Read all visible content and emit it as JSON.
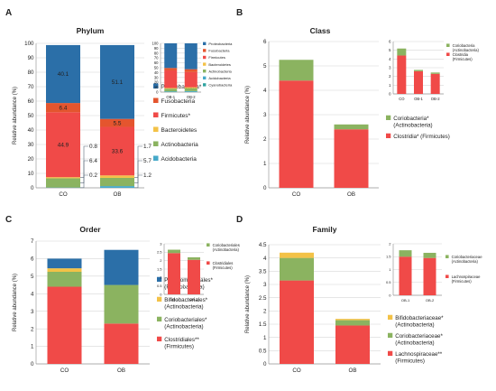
{
  "colors": {
    "proteobacteria": "#2b6fa8",
    "fusobacteria": "#e4552e",
    "firmicutes": "#f04a48",
    "bacteroidetes": "#f3c247",
    "actinobacteria": "#8bb360",
    "acidobacteria": "#46a9c9",
    "cyanobacteria": "#2ea3a0",
    "grid": "#d6d6d6",
    "axis": "#9a9a9a",
    "text": "#222222"
  },
  "chart_data": [
    {
      "id": "A-main",
      "panel_letter": "A",
      "type": "bar",
      "stacked": true,
      "title": "Phylum",
      "ylabel": "Relative abundance (%)",
      "xlabel": "",
      "categories": [
        "CO",
        "OB"
      ],
      "ylim": [
        0,
        100
      ],
      "yticks": [
        "0",
        "10",
        "20",
        "30",
        "40",
        "50",
        "60",
        "70",
        "80",
        "90",
        "100"
      ],
      "grid": true,
      "series": [
        {
          "key": "acidobacteria",
          "values": [
            0.2,
            1.2
          ]
        },
        {
          "key": "actinobacteria",
          "values": [
            6.4,
            5.7
          ]
        },
        {
          "key": "bacteroidetes",
          "values": [
            0.8,
            1.7
          ]
        },
        {
          "key": "firmicutes",
          "values": [
            44.9,
            33.6
          ]
        },
        {
          "key": "fusobacteria",
          "values": [
            6.4,
            5.5
          ]
        },
        {
          "key": "proteobacteria",
          "values": [
            40.1,
            51.1
          ]
        }
      ],
      "data_labels": [
        {
          "series": "proteobacteria",
          "cat": 0,
          "text": "40.1"
        },
        {
          "series": "proteobacteria",
          "cat": 1,
          "text": "51.1"
        },
        {
          "series": "fusobacteria",
          "cat": 0,
          "text": "6.4"
        },
        {
          "series": "fusobacteria",
          "cat": 1,
          "text": "5.5"
        },
        {
          "series": "firmicutes",
          "cat": 0,
          "text": "44.9"
        },
        {
          "series": "firmicutes",
          "cat": 1,
          "text": "33.6"
        }
      ],
      "side_labels": [
        {
          "cat": 0,
          "text": "0.8"
        },
        {
          "cat": 0,
          "text": "6.4"
        },
        {
          "cat": 0,
          "text": "0.2"
        },
        {
          "cat": 1,
          "text": "1.7"
        },
        {
          "cat": 1,
          "text": "5.7"
        },
        {
          "cat": 1,
          "text": "1.2"
        }
      ],
      "legend": [
        {
          "key": "proteobacteria",
          "text": "Proteobacteria*"
        },
        {
          "key": "fusobacteria",
          "text": "Fusobacteria"
        },
        {
          "key": "firmicutes",
          "text": "Firmicutes*"
        },
        {
          "key": "bacteroidetes",
          "text": "Bacteroidetes"
        },
        {
          "key": "actinobacteria",
          "text": "Actinobacteria"
        },
        {
          "key": "acidobacteria",
          "text": "Acidobacteria"
        }
      ],
      "legend_position": "right"
    },
    {
      "id": "A-inset",
      "type": "bar",
      "stacked": true,
      "categories": [
        "OB-1",
        "OB-2"
      ],
      "ylim": [
        0,
        100
      ],
      "yticks": [
        "0",
        "10",
        "20",
        "30",
        "40",
        "50",
        "60",
        "70",
        "80",
        "90",
        "100"
      ],
      "grid": true,
      "series": [
        {
          "key": "acidobacteria",
          "values": [
            1.0,
            1.5
          ]
        },
        {
          "key": "cyanobacteria",
          "values": [
            0.5,
            0.5
          ]
        },
        {
          "key": "actinobacteria",
          "values": [
            5.5,
            6.0
          ]
        },
        {
          "key": "bacteroidetes",
          "values": [
            1.5,
            2.0
          ]
        },
        {
          "key": "firmicutes",
          "values": [
            36,
            31
          ]
        },
        {
          "key": "fusobacteria",
          "values": [
            5,
            6
          ]
        },
        {
          "key": "proteobacteria",
          "values": [
            50.5,
            53
          ]
        }
      ],
      "legend": [
        {
          "key": "proteobacteria",
          "text": "Proteobacteria"
        },
        {
          "key": "fusobacteria",
          "text": "Fusobacteria"
        },
        {
          "key": "firmicutes",
          "text": "Firmicutes"
        },
        {
          "key": "bacteroidetes",
          "text": "Bacteroidetes"
        },
        {
          "key": "actinobacteria",
          "text": "Actinobacteria"
        },
        {
          "key": "acidobacteria",
          "text": "Acidobacteria"
        },
        {
          "key": "cyanobacteria",
          "text": "Cyanobacteria"
        }
      ],
      "legend_position": "right"
    },
    {
      "id": "B-main",
      "panel_letter": "B",
      "type": "bar",
      "stacked": true,
      "title": "Class",
      "ylabel": "Relative abundance (%)",
      "categories": [
        "CO",
        "OB"
      ],
      "ylim": [
        0,
        6
      ],
      "yticks": [
        "0",
        "1",
        "2",
        "3",
        "4",
        "5",
        "6"
      ],
      "grid": true,
      "series": [
        {
          "key": "firmicutes",
          "values": [
            4.4,
            2.4
          ]
        },
        {
          "key": "actinobacteria",
          "values": [
            0.85,
            0.2
          ]
        }
      ],
      "legend": [
        {
          "key": "actinobacteria",
          "text": "Coriobacteria*\n(Actinobacteria)"
        },
        {
          "key": "firmicutes",
          "text": "Clostridia* (Firmicutes)"
        }
      ],
      "legend_position": "right"
    },
    {
      "id": "B-inset",
      "type": "bar",
      "stacked": true,
      "categories": [
        "CO",
        "OB-1",
        "OB-2"
      ],
      "ylim": [
        0,
        6
      ],
      "yticks": [
        "0",
        "1",
        "2",
        "3",
        "4",
        "5",
        "6"
      ],
      "grid": true,
      "series": [
        {
          "key": "firmicutes",
          "values": [
            4.4,
            2.6,
            2.3
          ]
        },
        {
          "key": "actinobacteria",
          "values": [
            0.8,
            0.15,
            0.15
          ]
        }
      ],
      "legend": [
        {
          "key": "actinobacteria",
          "text": "Coriobacteria\n(Actinobacteria)"
        },
        {
          "key": "firmicutes",
          "text": "Clostridia\n(Firmicutes)"
        }
      ],
      "legend_position": "right"
    },
    {
      "id": "C-main",
      "panel_letter": "C",
      "type": "bar",
      "stacked": true,
      "title": "Order",
      "ylabel": "Relative abundance (%)",
      "categories": [
        "CO",
        "OB"
      ],
      "ylim": [
        0,
        7
      ],
      "yticks": [
        "0",
        "1",
        "2",
        "3",
        "4",
        "5",
        "6",
        "7"
      ],
      "grid": true,
      "series": [
        {
          "key": "firmicutes",
          "values": [
            4.4,
            2.3
          ]
        },
        {
          "key": "actinobacteria",
          "values": [
            0.85,
            2.2
          ]
        },
        {
          "key": "bacteroidetes",
          "values": [
            0.2,
            0.0
          ]
        },
        {
          "key": "proteobacteria",
          "values": [
            0.55,
            2.0
          ]
        }
      ],
      "legend": [
        {
          "key": "proteobacteria",
          "text": "Pseudomonadales*\n(Proteobacteria)"
        },
        {
          "key": "bacteroidetes",
          "text": "Bifidobacteriales*\n(Actinobacteria)"
        },
        {
          "key": "actinobacteria",
          "text": "Coriobacteriales*\n(Actinobacteria)"
        },
        {
          "key": "firmicutes",
          "text": "Clostridiales**\n(Firmicutes)"
        }
      ],
      "legend_position": "right"
    },
    {
      "id": "C-inset",
      "type": "bar",
      "stacked": true,
      "categories": [
        "OB-1",
        "OB-2"
      ],
      "ylim": [
        0,
        3
      ],
      "yticks": [
        "0",
        "0.5",
        "1",
        "1.5",
        "2",
        "2.5",
        "3"
      ],
      "grid": true,
      "series": [
        {
          "key": "firmicutes",
          "values": [
            2.45,
            2.05
          ]
        },
        {
          "key": "actinobacteria",
          "values": [
            0.2,
            0.15
          ]
        }
      ],
      "legend": [
        {
          "key": "actinobacteria",
          "text": "Coriobacteriales\n(Actinobacteria)"
        },
        {
          "key": "firmicutes",
          "text": "Clostridiales\n(Firmicutes)"
        }
      ],
      "legend_position": "right"
    },
    {
      "id": "D-main",
      "panel_letter": "D",
      "type": "bar",
      "stacked": true,
      "title": "Family",
      "ylabel": "Relative abundance (%)",
      "categories": [
        "CO",
        "OB"
      ],
      "ylim": [
        0,
        4.5
      ],
      "yticks": [
        "0",
        "0.5",
        "1",
        "1.5",
        "2",
        "2.5",
        "3",
        "3.5",
        "4",
        "4.5"
      ],
      "grid": true,
      "series": [
        {
          "key": "firmicutes",
          "values": [
            3.15,
            1.45
          ]
        },
        {
          "key": "actinobacteria",
          "values": [
            0.85,
            0.2
          ]
        },
        {
          "key": "bacteroidetes",
          "values": [
            0.2,
            0.05
          ]
        }
      ],
      "legend": [
        {
          "key": "bacteroidetes",
          "text": "Bifidobacteriaceae*\n(Actinobacteria)"
        },
        {
          "key": "actinobacteria",
          "text": "Coriobacteriaceae*\n(Actinobacteria)"
        },
        {
          "key": "firmicutes",
          "text": "Lachnospiraceae**\n(Firmicutes)"
        }
      ],
      "legend_position": "right"
    },
    {
      "id": "D-inset",
      "type": "bar",
      "stacked": true,
      "categories": [
        "OB-1",
        "OB-2"
      ],
      "ylim": [
        0,
        2
      ],
      "yticks": [
        "0",
        "0.5",
        "1",
        "1.5",
        "2"
      ],
      "grid": true,
      "series": [
        {
          "key": "firmicutes",
          "values": [
            1.5,
            1.45
          ]
        },
        {
          "key": "actinobacteria",
          "values": [
            0.25,
            0.2
          ]
        }
      ],
      "legend": [
        {
          "key": "actinobacteria",
          "text": "Coriobacteriaceae\n(Actinobacteria)"
        },
        {
          "key": "firmicutes",
          "text": "Lachnospiraceae\n(Firmicutes)"
        }
      ],
      "legend_position": "right"
    }
  ]
}
